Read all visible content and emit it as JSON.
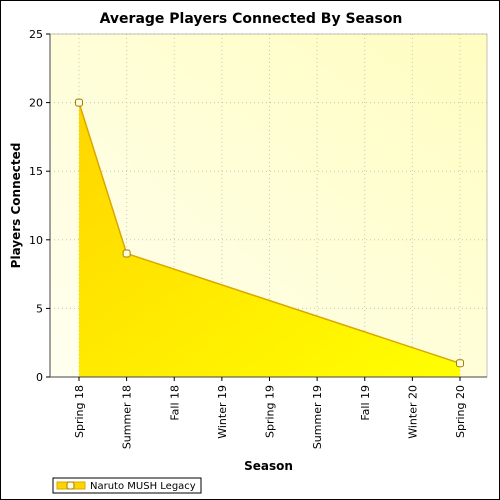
{
  "chart_data": {
    "type": "area",
    "title": "Average Players Connected By Season",
    "xlabel": "Season",
    "ylabel": "Players Connected",
    "categories": [
      "Spring 18",
      "Summer 18",
      "Fall 18",
      "Winter 19",
      "Spring 19",
      "Summer 19",
      "Fall 19",
      "Winter 20",
      "Spring 20"
    ],
    "series": [
      {
        "name": "Naruto MUSH Legacy",
        "points": [
          {
            "x": "Spring 18",
            "y": 20
          },
          {
            "x": "Summer 18",
            "y": 9
          },
          {
            "x": "Spring 20",
            "y": 1
          }
        ]
      }
    ],
    "ylim": [
      0,
      25
    ],
    "yticks": [
      0,
      5,
      10,
      15,
      20,
      25
    ],
    "grid": true,
    "legend_position": "bottom-left",
    "colors": {
      "plot_background_light": "#fffff0",
      "plot_background_warm": "#fffdc0",
      "area_fill_dark": "#ffd500",
      "area_fill_light": "#ffff00",
      "line": "#d9a800",
      "marker_fill": "#fffde0",
      "marker_stroke": "#a08000",
      "grid": "#c8c8b0"
    }
  }
}
